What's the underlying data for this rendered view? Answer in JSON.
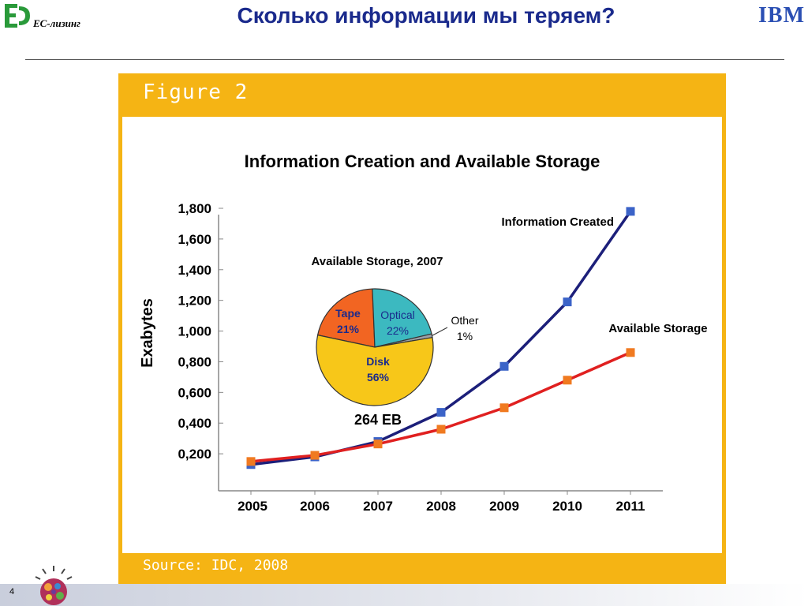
{
  "header": {
    "company_logo_text": "ЕС-лизинг",
    "title": "Сколько информации мы теряем?",
    "ibm_logo": "IBM"
  },
  "figure": {
    "label": "Figure 2",
    "source": "Source:  IDC, 2008"
  },
  "footer": {
    "page_number": "4"
  },
  "chart_data": {
    "type": "line",
    "title": "Information Creation and Available Storage",
    "xlabel": "",
    "ylabel": "Exabytes",
    "x": [
      "2005",
      "2006",
      "2007",
      "2008",
      "2009",
      "2010",
      "2011"
    ],
    "ylim": [
      0,
      1800
    ],
    "yticks": [
      {
        "value": 200,
        "label": "0,200"
      },
      {
        "value": 400,
        "label": "0,400"
      },
      {
        "value": 600,
        "label": "0,600"
      },
      {
        "value": 800,
        "label": "0,800"
      },
      {
        "value": 1000,
        "label": "1,000"
      },
      {
        "value": 1200,
        "label": "1,200"
      },
      {
        "value": 1400,
        "label": "1,400"
      },
      {
        "value": 1600,
        "label": "1,600"
      },
      {
        "value": 1800,
        "label": "1,800"
      }
    ],
    "grid": false,
    "series": [
      {
        "name": "Information Created",
        "color": "#1c1f7a",
        "marker_color": "#3b63c8",
        "values": [
          130,
          180,
          280,
          470,
          770,
          1190,
          1780
        ]
      },
      {
        "name": "Available Storage",
        "color": "#e02020",
        "marker_color": "#f07a20",
        "values": [
          150,
          190,
          264,
          360,
          500,
          680,
          860
        ]
      }
    ],
    "inset_pie": {
      "title": "Available Storage, 2007",
      "total_label": "264 EB",
      "slices": [
        {
          "name": "Tape",
          "value": 21,
          "label": "21%",
          "color": "#f26522"
        },
        {
          "name": "Optical",
          "value": 22,
          "label": "22%",
          "color": "#3cb9c0"
        },
        {
          "name": "Other",
          "value": 1,
          "label": "1%",
          "color": "#9aa0a6"
        },
        {
          "name": "Disk",
          "value": 56,
          "label": "56%",
          "color": "#f7c719"
        }
      ]
    }
  }
}
